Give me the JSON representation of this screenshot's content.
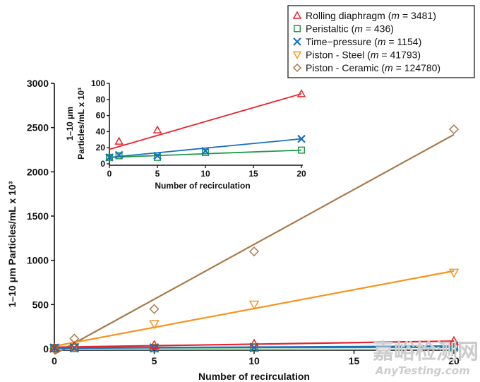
{
  "chart_data": [
    {
      "id": "main",
      "type": "scatter",
      "title": "",
      "xlabel": "Number of  recirculation",
      "ylabel": "1–10 μm Particles/mL x 10³",
      "xlim": [
        0,
        20
      ],
      "ylim": [
        0,
        3000
      ],
      "xticks": [
        "0",
        "5",
        "10",
        "15",
        "20"
      ],
      "yticks": [
        "0",
        "500",
        "1000",
        "1500",
        "2000",
        "2500",
        "3000"
      ],
      "x": [
        0,
        1,
        5,
        10,
        20
      ],
      "grid": false,
      "fit_lines": true,
      "series": [
        {
          "name": "Rolling diaphragm",
          "slope_label": "m = 3481",
          "color": "#e8232a",
          "marker": "triangle-up",
          "values": [
            8,
            28,
            42,
            55,
            87
          ],
          "fit": [
            18,
            87
          ]
        },
        {
          "name": "Peristaltic",
          "slope_label": "m = 436",
          "color": "#1e9a48",
          "marker": "square",
          "values": [
            8,
            10,
            8,
            14,
            17
          ],
          "fit": [
            9,
            17
          ]
        },
        {
          "name": "Time−pressure",
          "slope_label": "m = 1154",
          "color": "#1a6fc0",
          "marker": "x",
          "values": [
            8,
            11,
            10,
            16,
            31
          ],
          "fit": [
            8,
            31
          ]
        },
        {
          "name": "Piston - Steel",
          "slope_label": "m = 41793",
          "color": "#f7941d",
          "marker": "triangle-down",
          "values": [
            10,
            20,
            280,
            500,
            860
          ],
          "fit": [
            30,
            880
          ]
        },
        {
          "name": "Piston - Ceramic",
          "slope_label": "m = 124780",
          "color": "#a87a4b",
          "marker": "diamond",
          "values": [
            0,
            115,
            450,
            1100,
            2480
          ],
          "fit": [
            -60,
            2420
          ]
        }
      ]
    },
    {
      "id": "inset",
      "type": "scatter",
      "xlabel": "Number of  recirculation",
      "ylabel_lines": [
        "1–10 μm",
        "Particles/mL x 10³"
      ],
      "xlim": [
        0,
        20
      ],
      "ylim": [
        0,
        100
      ],
      "xticks": [
        "0",
        "5",
        "10",
        "15",
        "20"
      ],
      "yticks": [
        "0",
        "20",
        "40",
        "60",
        "80",
        "100"
      ],
      "x": [
        0,
        1,
        5,
        10,
        20
      ],
      "series": [
        {
          "name": "Rolling diaphragm",
          "color": "#e8232a",
          "marker": "triangle-up",
          "values": [
            null,
            28,
            42,
            null,
            87
          ],
          "fit": [
            18,
            87
          ]
        },
        {
          "name": "Peristaltic",
          "color": "#1e9a48",
          "marker": "square",
          "values": [
            8,
            10,
            8,
            14,
            17
          ],
          "fit": [
            8,
            17
          ]
        },
        {
          "name": "Time−pressure",
          "color": "#1a6fc0",
          "marker": "x",
          "values": [
            8,
            11,
            10,
            16,
            31
          ],
          "fit": [
            8,
            31
          ]
        }
      ]
    }
  ],
  "legend": {
    "placement": "top-right",
    "items": [
      {
        "name": "Rolling diaphragm",
        "m": "3481"
      },
      {
        "name": "Peristaltic",
        "m": "436"
      },
      {
        "name": "Time−pressure",
        "m": "1154"
      },
      {
        "name": "Piston - Steel",
        "m": "41793"
      },
      {
        "name": "Piston - Ceramic",
        "m": "124780"
      }
    ]
  },
  "watermark": {
    "line1": "嘉峪检测网",
    "line2": "AnyTesting.com"
  }
}
